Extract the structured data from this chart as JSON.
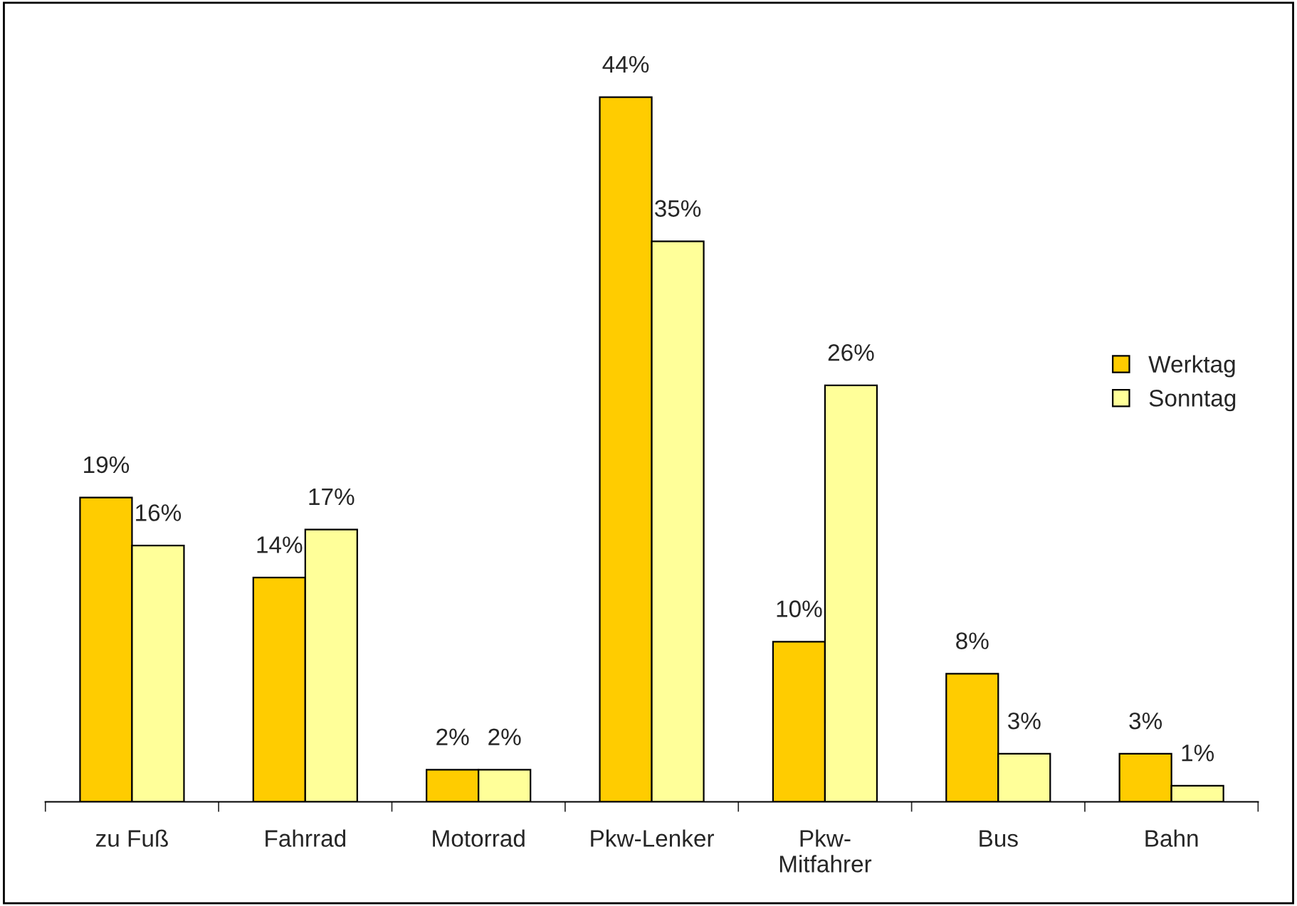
{
  "chart_data": {
    "type": "bar",
    "categories": [
      "zu Fuß",
      "Fahrrad",
      "Motorrad",
      "Pkw-Lenker",
      "Pkw-\nMitfahrer",
      "Bus",
      "Bahn"
    ],
    "series": [
      {
        "name": "Werktag",
        "color": "#ffcc00",
        "values": [
          19,
          14,
          2,
          44,
          10,
          8,
          3
        ],
        "value_labels": [
          "19%",
          "14%",
          "2%",
          "44%",
          "10%",
          "8%",
          "3%"
        ]
      },
      {
        "name": "Sonntag",
        "color": "#ffff99",
        "values": [
          16,
          17,
          2,
          35,
          26,
          3,
          1
        ],
        "value_labels": [
          "16%",
          "17%",
          "2%",
          "35%",
          "26%",
          "3%",
          "1%"
        ]
      }
    ],
    "legend": "right",
    "grid": false
  }
}
